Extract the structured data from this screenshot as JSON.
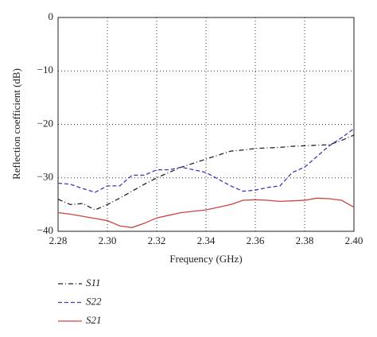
{
  "chart_data": {
    "type": "line",
    "xlabel": "Frequency (GHz)",
    "ylabel": "Reflection coefficient (dB)",
    "x": [
      2.28,
      2.285,
      2.29,
      2.295,
      2.3,
      2.305,
      2.31,
      2.315,
      2.32,
      2.325,
      2.33,
      2.34,
      2.35,
      2.355,
      2.36,
      2.365,
      2.37,
      2.375,
      2.38,
      2.385,
      2.39,
      2.395,
      2.4
    ],
    "series": [
      {
        "name": "S11",
        "color": "#222222",
        "dash": "6 3 1 3",
        "values": [
          -34,
          -35,
          -34.8,
          -36,
          -35,
          -33.8,
          -32.5,
          -31.2,
          -30,
          -29,
          -28,
          -26.5,
          -25,
          -24.8,
          -24.5,
          -24.4,
          -24.3,
          -24.1,
          -24,
          -23.9,
          -23.8,
          -23,
          -22
        ]
      },
      {
        "name": "S22",
        "color": "#3a3ab8",
        "dash": "5 3",
        "values": [
          -31,
          -31.2,
          -32,
          -32.7,
          -31.5,
          -31.5,
          -29.5,
          -29.5,
          -28.5,
          -28.5,
          -28,
          -29,
          -31.5,
          -32.5,
          -32.3,
          -31.8,
          -31.5,
          -29,
          -28,
          -26,
          -24,
          -22.5,
          -20.8
        ]
      },
      {
        "name": "S21",
        "color": "#cc4444",
        "dash": "",
        "values": [
          -36.5,
          -36.8,
          -37.2,
          -37.6,
          -38,
          -39,
          -39.3,
          -38.5,
          -37.5,
          -37,
          -36.5,
          -36,
          -35,
          -34.2,
          -34.1,
          -34.2,
          -34.4,
          -34.3,
          -34.2,
          -33.8,
          -33.9,
          -34.2,
          -35.5
        ]
      }
    ],
    "xlim": [
      2.28,
      2.4
    ],
    "xticks": [
      2.28,
      {
        "value": 2.3,
        "label": "2.30"
      },
      2.32,
      2.34,
      2.36,
      2.38,
      {
        "value": 2.4,
        "label": "2.40"
      }
    ],
    "ylim": [
      -40,
      0
    ],
    "yticks": [
      0,
      {
        "value": -10,
        "label": "−10"
      },
      {
        "value": -20,
        "label": "−20"
      },
      {
        "value": -30,
        "label": "−30"
      },
      {
        "value": -40,
        "label": "−40"
      }
    ],
    "grid": true
  }
}
